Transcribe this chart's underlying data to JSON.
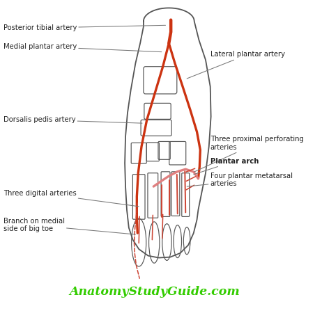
{
  "watermark": "AnatomyStudyGuide.com",
  "watermark_color": "#33cc00",
  "bg_color": "#ffffff",
  "foot_outline_color": "#555555",
  "bone_color": "#666666",
  "artery_red_color": "#cc3311",
  "artery_pink_color": "#e08080",
  "artery_light_red": "#cc4433",
  "label_color": "#222222",
  "labels": {
    "posterior_tibial": "Posterior tibial artery",
    "medial_plantar": "Medial plantar artery",
    "lateral_plantar": "Lateral plantar artery",
    "dorsalis_pedis": "Dorsalis pedis artery",
    "three_proximal": "Three proximal perforating\narteries",
    "plantar_arch": "Plantar arch",
    "three_digital": "Three digital arteries",
    "four_plantar": "Four plantar metatarsal\narteries",
    "branch_medial": "Branch on medial\nside of big toe"
  }
}
